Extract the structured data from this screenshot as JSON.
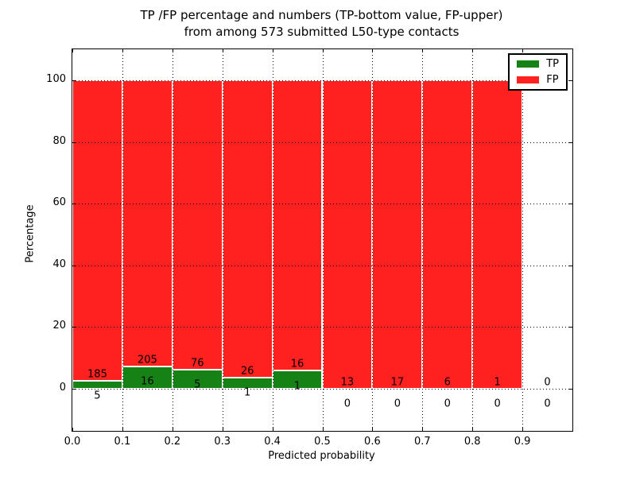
{
  "figure": {
    "title_line1": "TP /FP percentage and numbers (TP-bottom value, FP-upper)",
    "title_line2": "from among 573 submitted L50-type contacts",
    "xlabel": "Predicted probability",
    "ylabel": "Percentage"
  },
  "legend": {
    "items": [
      {
        "label": "TP",
        "color": "#168216"
      },
      {
        "label": "FP",
        "color": "#ff2020"
      }
    ]
  },
  "colors": {
    "tp": "#168216",
    "fp": "#ff2020",
    "grid": "#000000",
    "background": "#ffffff"
  },
  "chart_data": {
    "type": "bar",
    "stacked": true,
    "normalized": "percent",
    "title": "TP /FP percentage and numbers (TP-bottom value, FP-upper) from among 573 submitted L50-type contacts",
    "xlabel": "Predicted probability",
    "ylabel": "Percentage",
    "total_contacts": 573,
    "grid": "dotted",
    "legend_position": "upper right",
    "xlim": [
      0.0,
      1.0
    ],
    "ylim": [
      -13.7,
      110.1
    ],
    "bin_width": 0.1,
    "x_tick_labels": [
      "0.0",
      "0.1",
      "0.2",
      "0.3",
      "0.4",
      "0.5",
      "0.6",
      "0.7",
      "0.8",
      "0.9"
    ],
    "y_ticks": [
      0,
      20,
      40,
      60,
      80,
      100
    ],
    "categories": [
      "0.0-0.1",
      "0.1-0.2",
      "0.2-0.3",
      "0.3-0.4",
      "0.4-0.5",
      "0.5-0.6",
      "0.6-0.7",
      "0.7-0.8",
      "0.8-0.9",
      "0.9-1.0"
    ],
    "series": [
      {
        "name": "TP",
        "values": [
          5,
          16,
          5,
          1,
          1,
          0,
          0,
          0,
          0,
          0
        ]
      },
      {
        "name": "FP",
        "values": [
          185,
          205,
          76,
          26,
          16,
          13,
          17,
          6,
          1,
          0
        ]
      }
    ],
    "bins": [
      {
        "range": [
          0.0,
          0.1
        ],
        "tp": 5,
        "fp": 185
      },
      {
        "range": [
          0.1,
          0.2
        ],
        "tp": 16,
        "fp": 205
      },
      {
        "range": [
          0.2,
          0.3
        ],
        "tp": 5,
        "fp": 76
      },
      {
        "range": [
          0.3,
          0.4
        ],
        "tp": 1,
        "fp": 26
      },
      {
        "range": [
          0.4,
          0.5
        ],
        "tp": 1,
        "fp": 16
      },
      {
        "range": [
          0.5,
          0.6
        ],
        "tp": 0,
        "fp": 13
      },
      {
        "range": [
          0.6,
          0.7
        ],
        "tp": 0,
        "fp": 17
      },
      {
        "range": [
          0.7,
          0.8
        ],
        "tp": 0,
        "fp": 6
      },
      {
        "range": [
          0.8,
          0.9
        ],
        "tp": 0,
        "fp": 1
      },
      {
        "range": [
          0.9,
          1.0
        ],
        "tp": 0,
        "fp": 0
      }
    ]
  }
}
